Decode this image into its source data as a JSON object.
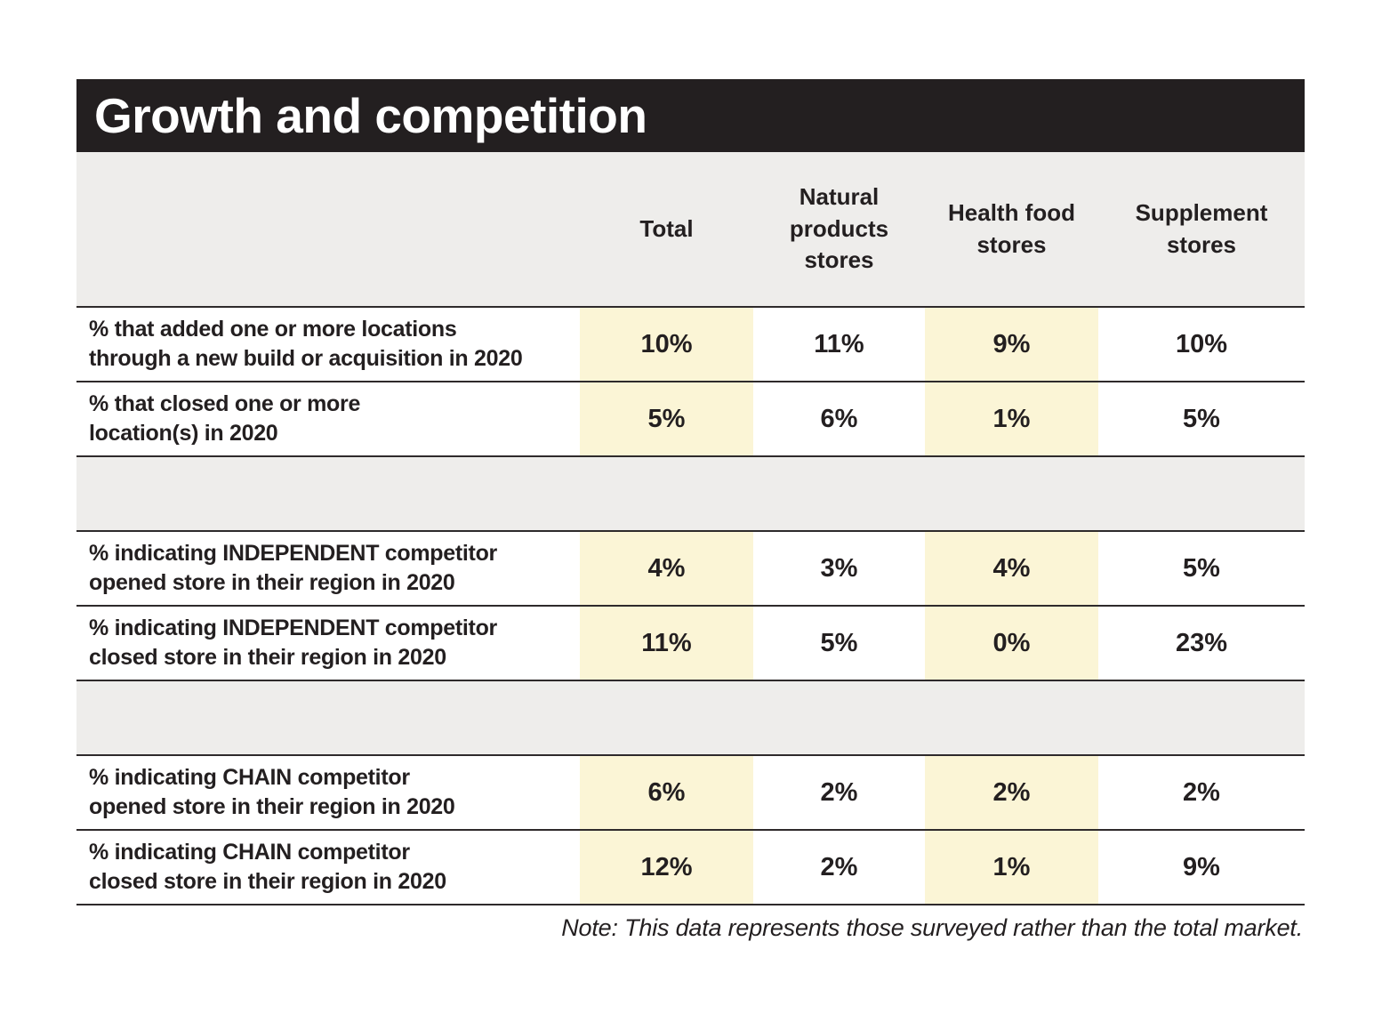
{
  "title": "Growth and competition",
  "columns": [
    {
      "label": "Total",
      "highlight": true
    },
    {
      "label": "Natural products stores",
      "highlight": false
    },
    {
      "label": "Health food stores",
      "highlight": true
    },
    {
      "label": "Supplement stores",
      "highlight": false
    }
  ],
  "groups": [
    {
      "rows": [
        {
          "label": "% that added one or more locations\nthrough a new build or acquisition in 2020",
          "values": [
            "10%",
            "11%",
            "9%",
            "10%"
          ]
        },
        {
          "label": "% that closed one or more\nlocation(s) in 2020",
          "values": [
            "5%",
            "6%",
            "1%",
            "5%"
          ]
        }
      ]
    },
    {
      "rows": [
        {
          "label": "% indicating INDEPENDENT competitor\nopened store in their region in 2020",
          "values": [
            "4%",
            "3%",
            "4%",
            "5%"
          ]
        },
        {
          "label": "% indicating INDEPENDENT competitor\nclosed store in their region in 2020",
          "values": [
            "11%",
            "5%",
            "0%",
            "23%"
          ]
        }
      ]
    },
    {
      "rows": [
        {
          "label": "% indicating CHAIN competitor\nopened store in their region in 2020",
          "values": [
            "6%",
            "2%",
            "2%",
            "2%"
          ]
        },
        {
          "label": "% indicating CHAIN competitor\nclosed store in their region in 2020",
          "values": [
            "12%",
            "2%",
            "1%",
            "9%"
          ]
        }
      ]
    }
  ],
  "note": "Note: This data represents those surveyed rather than the total market.",
  "colors": {
    "title_bar": "#231f20",
    "header_panel": "#eeedeb",
    "highlight": "#fbf5d6",
    "divider": "#2e2a2b",
    "text": "#231f20"
  },
  "chart_data": {
    "type": "table",
    "title": "Growth and competition",
    "columns": [
      "Total",
      "Natural products stores",
      "Health food stores",
      "Supplement stores"
    ],
    "highlighted_columns": [
      "Total",
      "Health food stores"
    ],
    "rows": [
      "% that added one or more locations through a new build or acquisition in 2020",
      "% that closed one or more location(s) in 2020",
      "% indicating INDEPENDENT competitor opened store in their region in 2020",
      "% indicating INDEPENDENT competitor closed store in their region in 2020",
      "% indicating CHAIN competitor opened store in their region in 2020",
      "% indicating CHAIN competitor closed store in their region in 2020"
    ],
    "values_percent": [
      [
        10,
        11,
        9,
        10
      ],
      [
        5,
        6,
        1,
        5
      ],
      [
        4,
        3,
        4,
        5
      ],
      [
        11,
        5,
        0,
        23
      ],
      [
        6,
        2,
        2,
        2
      ],
      [
        12,
        2,
        1,
        9
      ]
    ],
    "units": "%",
    "note": "Note: This data represents those surveyed rather than the total market."
  }
}
